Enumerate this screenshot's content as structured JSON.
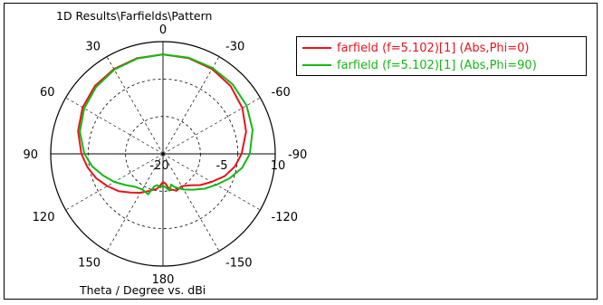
{
  "chart_data": {
    "type": "line",
    "subtype": "polar",
    "title": "1D Results\\Farfields\\Pattern",
    "xlabel": "Theta / Degree vs. dBi",
    "angle_ticks": [
      "0",
      "30",
      "60",
      "90",
      "120",
      "150",
      "180",
      "-150",
      "-120",
      "-90",
      "-60",
      "-30"
    ],
    "radial_ticks": [
      "-20",
      "-5",
      "10"
    ],
    "radial_range": [
      -20,
      10
    ],
    "grid": true,
    "legend_position": "top-right",
    "series": [
      {
        "name": "farfield (f=5.102)[1] (Abs,Phi=0)",
        "color": "#e8141c",
        "theta": [
          0,
          15,
          30,
          45,
          60,
          75,
          90,
          100,
          110,
          120,
          130,
          140,
          150,
          160,
          170,
          175,
          180,
          185,
          190,
          200,
          210,
          220,
          230,
          240,
          250,
          260,
          270,
          285,
          300,
          315,
          330,
          345,
          360
        ],
        "gain": [
          6.6,
          6.5,
          6.2,
          5.7,
          4.8,
          3.5,
          1.8,
          0.5,
          -1.0,
          -2.8,
          -4.5,
          -6.5,
          -8.0,
          -9.5,
          -10.5,
          -11.5,
          -12.5,
          -12.0,
          -10.5,
          -9.5,
          -10.0,
          -9.0,
          -7.0,
          -5.0,
          -2.5,
          -0.5,
          1.0,
          3.0,
          4.5,
          5.6,
          6.2,
          6.5,
          6.6
        ]
      },
      {
        "name": "farfield (f=5.102)[1] (Abs,Phi=90)",
        "color": "#16b816",
        "theta": [
          0,
          15,
          30,
          45,
          60,
          75,
          90,
          100,
          110,
          120,
          130,
          140,
          150,
          160,
          165,
          170,
          175,
          180,
          185,
          190,
          195,
          200,
          210,
          220,
          230,
          240,
          250,
          260,
          270,
          285,
          300,
          315,
          330,
          345,
          360
        ],
        "gain": [
          6.6,
          6.4,
          6.0,
          5.3,
          4.3,
          3.0,
          1.0,
          -0.8,
          -3.0,
          -5.0,
          -7.0,
          -8.5,
          -9.0,
          -8.5,
          -11.0,
          -11.5,
          -11.0,
          -11.5,
          -11.0,
          -10.0,
          -11.5,
          -10.5,
          -9.0,
          -7.5,
          -5.5,
          -3.5,
          -1.0,
          1.5,
          3.2,
          4.8,
          5.8,
          6.3,
          6.5,
          6.6,
          6.6
        ]
      }
    ]
  }
}
